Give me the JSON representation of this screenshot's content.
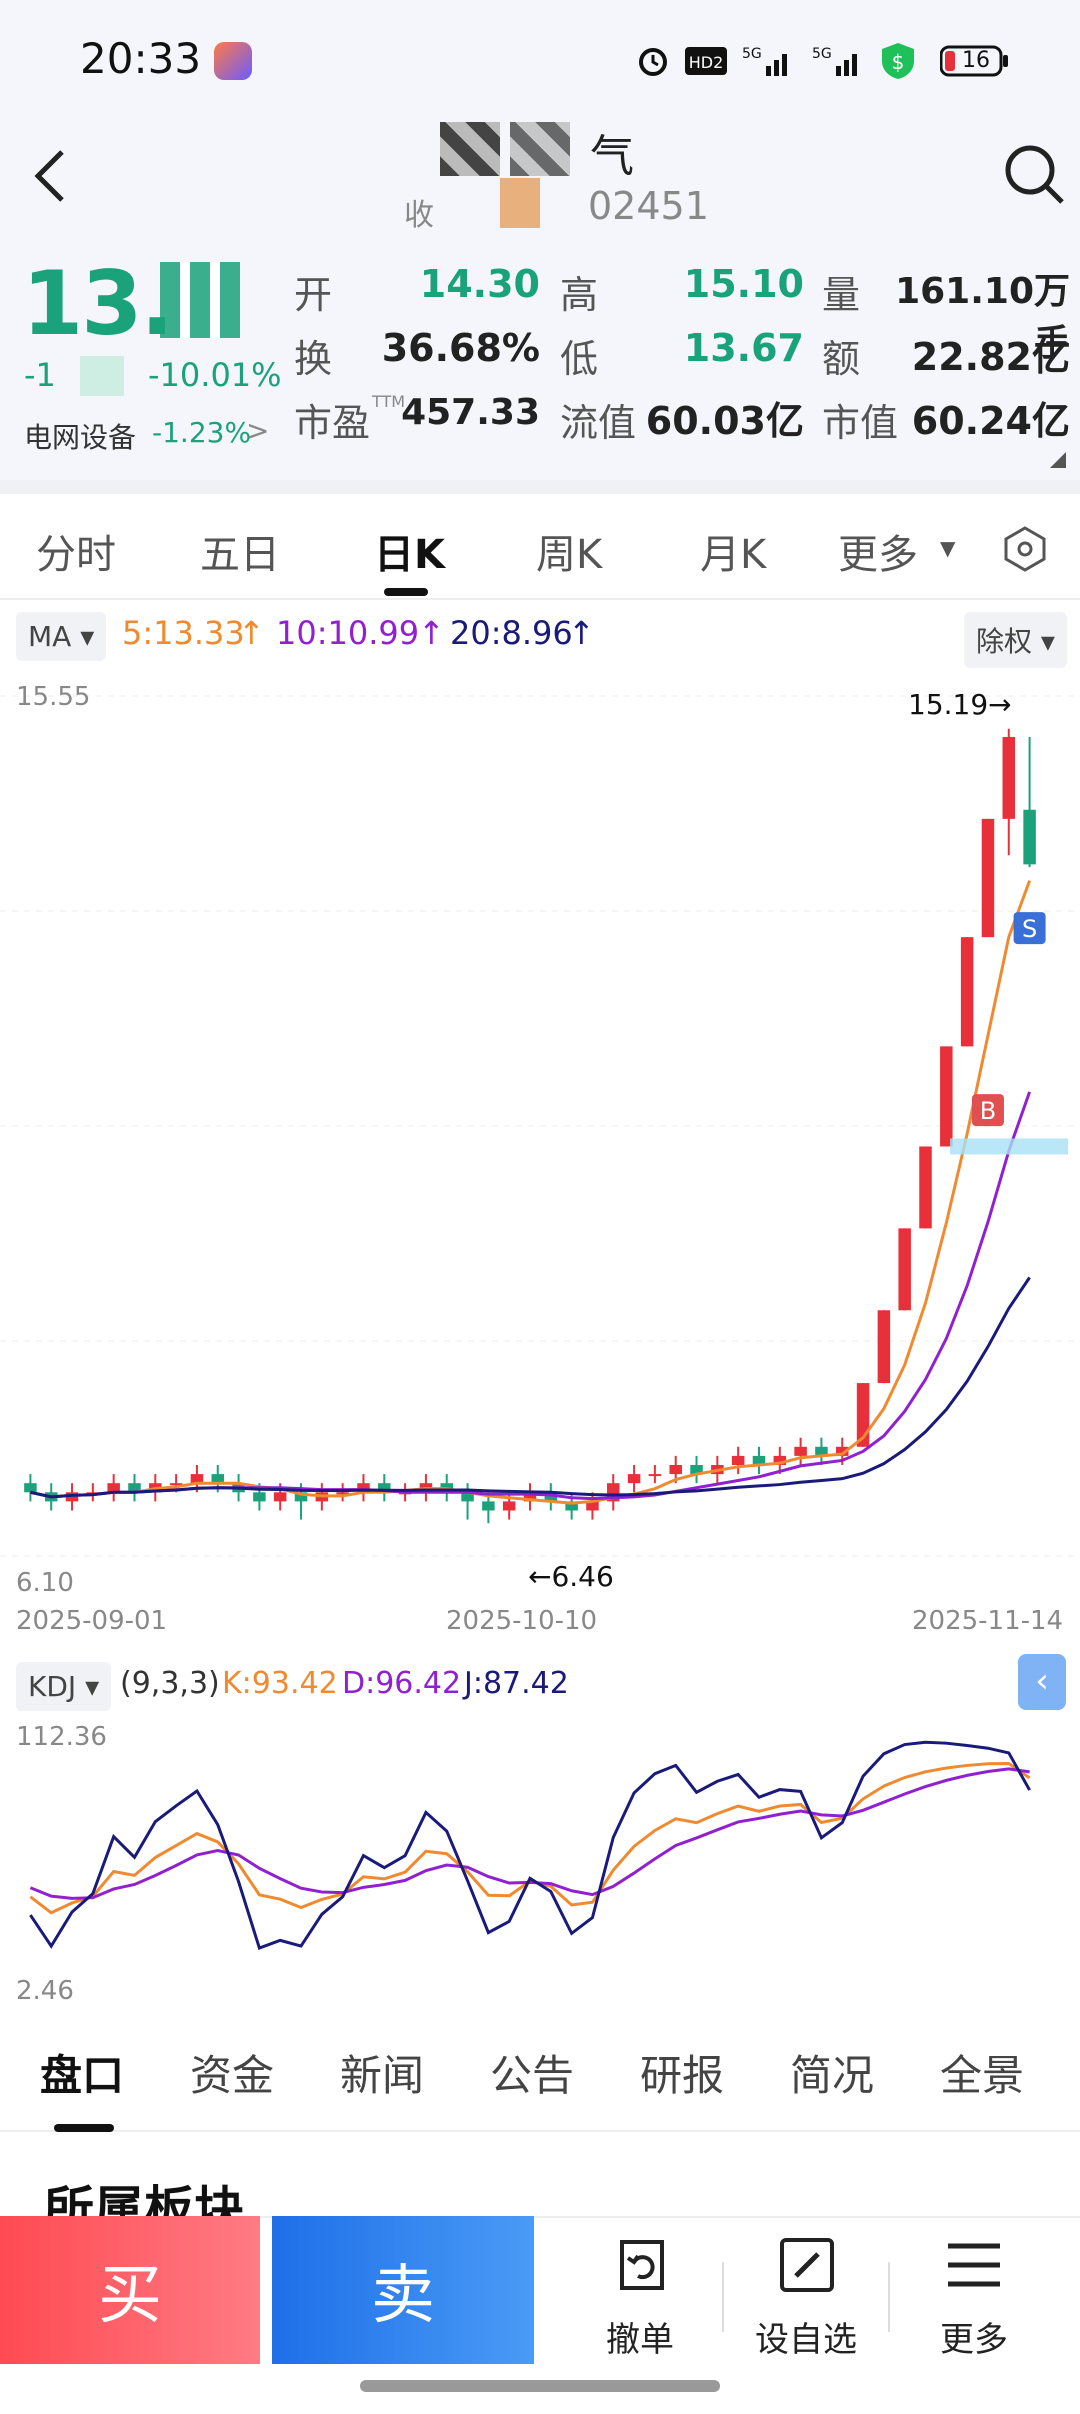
{
  "status_bar": {
    "time": "20:33",
    "battery": "16",
    "icons": [
      "alarm-icon",
      "hd2-icon",
      "5g-signal-icon",
      "5g-signal-icon",
      "security-shield-icon",
      "battery-icon"
    ]
  },
  "header": {
    "name_suffix": "气",
    "code_suffix": "02451",
    "code_prefix": "收"
  },
  "quote": {
    "price_partial": "13.",
    "change_partial": "-1",
    "change_pct": "-10.01%",
    "sector": "电网设备",
    "sector_pct": "-1.23%",
    "open_label": "开",
    "open": "14.30",
    "high_label": "高",
    "high": "15.10",
    "volume_label": "量",
    "volume": "161.10万手",
    "turnover_label": "换",
    "turnover": "36.68%",
    "low_label": "低",
    "low": "13.67",
    "amount_label": "额",
    "amount": "22.82亿",
    "pe_label": "市盈",
    "pe_sup": "TTM",
    "pe": "457.33",
    "float_label": "流值",
    "float_cap": "60.03亿",
    "mcap_label": "市值",
    "mcap": "60.24亿"
  },
  "chart_tabs": [
    "分时",
    "五日",
    "日K",
    "周K",
    "月K",
    "更多"
  ],
  "ma": {
    "selector": "MA",
    "ma5": "5:13.33",
    "ma10": "10:10.99",
    "ma20": "20:8.96",
    "adjust": "除权"
  },
  "colors": {
    "up": "#e8303a",
    "down": "#1aa27a",
    "ma5": "#f08a30",
    "ma10": "#9020d0",
    "ma20": "#1a1a7a"
  },
  "chart_data": {
    "type": "candlestick",
    "y_max_label": "15.55",
    "y_min_label": "6.10",
    "ylim": [
      6.1,
      15.55
    ],
    "high_marker": "15.19→",
    "low_marker": "←6.46",
    "x_labels": [
      "2025-09-01",
      "2025-10-10",
      "2025-11-14"
    ],
    "markers": [
      "S",
      "B"
    ],
    "candles": [
      [
        6.9,
        6.8,
        7.0,
        6.7
      ],
      [
        6.8,
        6.7,
        6.9,
        6.6
      ],
      [
        6.7,
        6.8,
        6.9,
        6.6
      ],
      [
        6.8,
        6.8,
        6.9,
        6.7
      ],
      [
        6.8,
        6.9,
        7.0,
        6.7
      ],
      [
        6.9,
        6.8,
        7.0,
        6.7
      ],
      [
        6.8,
        6.9,
        7.0,
        6.7
      ],
      [
        6.9,
        6.9,
        7.0,
        6.8
      ],
      [
        6.9,
        7.0,
        7.1,
        6.8
      ],
      [
        7.0,
        6.9,
        7.1,
        6.8
      ],
      [
        6.9,
        6.8,
        7.0,
        6.7
      ],
      [
        6.8,
        6.7,
        6.9,
        6.6
      ],
      [
        6.7,
        6.8,
        6.9,
        6.6
      ],
      [
        6.8,
        6.7,
        6.9,
        6.5
      ],
      [
        6.7,
        6.8,
        6.9,
        6.6
      ],
      [
        6.8,
        6.8,
        6.9,
        6.7
      ],
      [
        6.8,
        6.9,
        7.0,
        6.7
      ],
      [
        6.9,
        6.8,
        7.0,
        6.7
      ],
      [
        6.8,
        6.8,
        6.9,
        6.7
      ],
      [
        6.8,
        6.9,
        7.0,
        6.7
      ],
      [
        6.9,
        6.8,
        7.0,
        6.7
      ],
      [
        6.8,
        6.7,
        6.9,
        6.5
      ],
      [
        6.7,
        6.6,
        6.8,
        6.46
      ],
      [
        6.6,
        6.7,
        6.8,
        6.5
      ],
      [
        6.7,
        6.8,
        6.9,
        6.6
      ],
      [
        6.8,
        6.7,
        6.9,
        6.6
      ],
      [
        6.7,
        6.6,
        6.8,
        6.5
      ],
      [
        6.6,
        6.7,
        6.8,
        6.5
      ],
      [
        6.7,
        6.9,
        7.0,
        6.6
      ],
      [
        6.9,
        7.0,
        7.1,
        6.8
      ],
      [
        7.0,
        7.0,
        7.1,
        6.9
      ],
      [
        7.0,
        7.1,
        7.2,
        6.9
      ],
      [
        7.1,
        7.0,
        7.2,
        6.9
      ],
      [
        7.0,
        7.1,
        7.2,
        6.9
      ],
      [
        7.1,
        7.2,
        7.3,
        7.0
      ],
      [
        7.2,
        7.1,
        7.3,
        7.0
      ],
      [
        7.1,
        7.2,
        7.3,
        7.0
      ],
      [
        7.2,
        7.3,
        7.4,
        7.1
      ],
      [
        7.3,
        7.2,
        7.4,
        7.1
      ],
      [
        7.2,
        7.3,
        7.4,
        7.1
      ],
      [
        7.3,
        8.0,
        8.0,
        7.3
      ],
      [
        8.0,
        8.8,
        8.8,
        8.0
      ],
      [
        8.8,
        9.7,
        9.7,
        8.8
      ],
      [
        9.7,
        10.6,
        10.6,
        9.7
      ],
      [
        10.6,
        11.7,
        11.7,
        10.6
      ],
      [
        11.7,
        12.9,
        12.9,
        11.7
      ],
      [
        12.9,
        14.2,
        14.2,
        12.9
      ],
      [
        14.2,
        15.1,
        15.19,
        13.8
      ],
      [
        14.3,
        13.7,
        15.1,
        13.67
      ]
    ],
    "kdj": {
      "selector": "KDJ",
      "params": "(9,3,3)",
      "k": "K:93.42",
      "d": "D:96.42",
      "j": "J:87.42",
      "ylim": [
        2.46,
        112.36
      ],
      "y_max_label": "112.36",
      "y_min_label": "2.46"
    }
  },
  "bottom_tabs": [
    "盘口",
    "资金",
    "新闻",
    "公告",
    "研报",
    "简况",
    "全景"
  ],
  "section_title": "所属板块",
  "actions": {
    "buy": "买",
    "sell": "卖",
    "cancel": "撤单",
    "watch": "设自选",
    "more": "更多"
  }
}
